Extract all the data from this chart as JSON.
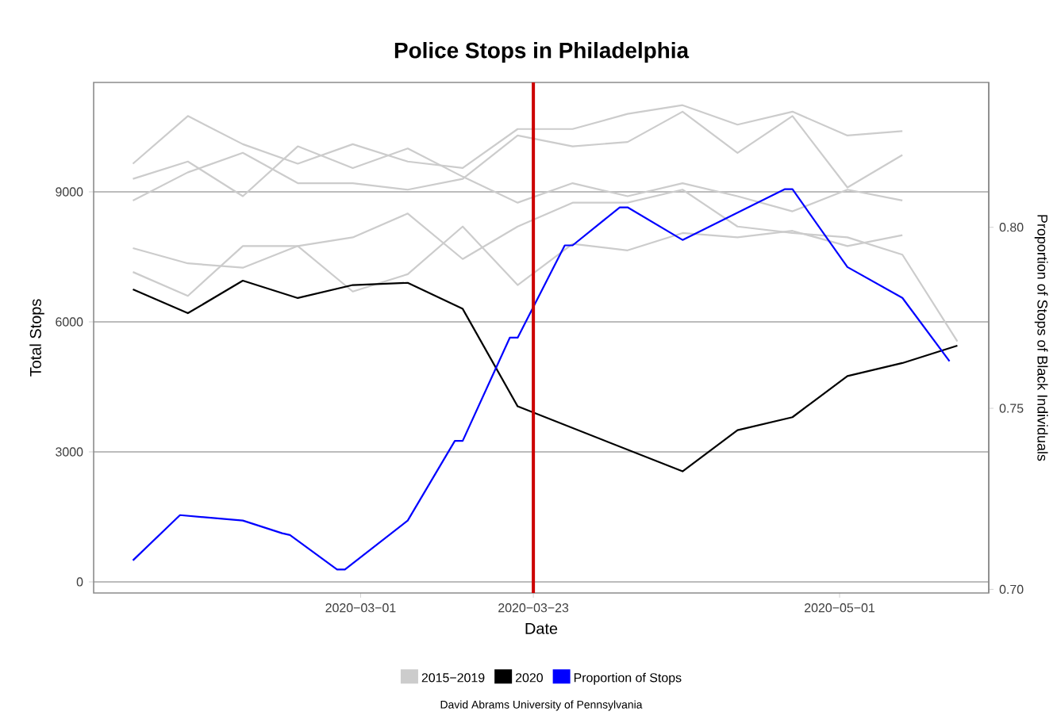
{
  "chart_data": {
    "type": "line",
    "title": "Police Stops in Philadelphia",
    "xlabel": "Date",
    "ylabel": "Total Stops",
    "y2label": "Proportion of Stops of Black Individuals",
    "xlim": [
      "2020-01-27",
      "2020-05-20"
    ],
    "xticks": [
      {
        "value": "2020-03-01",
        "label": "2020−03−01"
      },
      {
        "value": "2020-03-23",
        "label": "2020−03−23"
      },
      {
        "value": "2020-05-01",
        "label": "2020−05−01"
      }
    ],
    "ylim": [
      -256,
      11525
    ],
    "yticks": [
      0,
      3000,
      6000,
      9000
    ],
    "y2lim": [
      0.699,
      0.84
    ],
    "y2ticks": [
      {
        "value": 0.7,
        "label": "0.70"
      },
      {
        "value": 0.75,
        "label": "0.75"
      },
      {
        "value": 0.8,
        "label": "0.80"
      }
    ],
    "grid": "y",
    "legend": "bottom",
    "ref_lines": [
      {
        "axis": "x",
        "value": "2020-03-23",
        "color": "#cc0000"
      }
    ],
    "annotations": [
      "David Abrams University of Pennsylvania"
    ],
    "series": [
      {
        "name": "2015−2019",
        "color": "#cccccc",
        "x": [
          "2020-02-01",
          "2020-02-08",
          "2020-02-15",
          "2020-02-22",
          "2020-02-29",
          "2020-03-07",
          "2020-03-14",
          "2020-03-21",
          "2020-03-28",
          "2020-04-04",
          "2020-04-11",
          "2020-04-18",
          "2020-04-25",
          "2020-05-02",
          "2020-05-09"
        ],
        "values": [
          9650,
          10750,
          10100,
          9650,
          10100,
          9700,
          9550,
          10450,
          10450,
          10800,
          11000,
          10550,
          10850,
          10300,
          10400
        ]
      },
      {
        "color": "#cccccc",
        "x": [
          "2020-02-01",
          "2020-02-08",
          "2020-02-15",
          "2020-02-22",
          "2020-02-29",
          "2020-03-07",
          "2020-03-14",
          "2020-03-21",
          "2020-03-28",
          "2020-04-04",
          "2020-04-11",
          "2020-04-18",
          "2020-04-25",
          "2020-05-02",
          "2020-05-09"
        ],
        "values": [
          9300,
          9700,
          8900,
          10050,
          9550,
          10000,
          9350,
          8750,
          9200,
          8900,
          9200,
          8900,
          8550,
          9050,
          8800
        ]
      },
      {
        "color": "#cccccc",
        "x": [
          "2020-02-01",
          "2020-02-08",
          "2020-02-15",
          "2020-02-22",
          "2020-02-29",
          "2020-03-07",
          "2020-03-14",
          "2020-03-21",
          "2020-03-28",
          "2020-04-04",
          "2020-04-11",
          "2020-04-18",
          "2020-04-25",
          "2020-05-02",
          "2020-05-09"
        ],
        "values": [
          8800,
          9450,
          9900,
          9200,
          9200,
          9050,
          9300,
          10300,
          10050,
          10150,
          10850,
          9900,
          10750,
          9100,
          9850
        ]
      },
      {
        "color": "#cccccc",
        "x": [
          "2020-02-01",
          "2020-02-08",
          "2020-02-15",
          "2020-02-22",
          "2020-02-29",
          "2020-03-07",
          "2020-03-14",
          "2020-03-21",
          "2020-03-28",
          "2020-04-04",
          "2020-04-11",
          "2020-04-18",
          "2020-04-25",
          "2020-05-02",
          "2020-05-09",
          "2020-05-16"
        ],
        "values": [
          7700,
          7350,
          7250,
          7750,
          7950,
          8500,
          7450,
          8200,
          8750,
          8750,
          9050,
          8200,
          8050,
          7950,
          7550,
          5550
        ]
      },
      {
        "color": "#cccccc",
        "x": [
          "2020-02-01",
          "2020-02-08",
          "2020-02-15",
          "2020-02-22",
          "2020-02-29",
          "2020-03-07",
          "2020-03-14",
          "2020-03-21",
          "2020-03-28",
          "2020-04-04",
          "2020-04-11",
          "2020-04-18",
          "2020-04-25",
          "2020-05-02",
          "2020-05-09"
        ],
        "values": [
          7150,
          6600,
          7750,
          7750,
          6700,
          7100,
          8200,
          6850,
          7800,
          7650,
          8050,
          7950,
          8100,
          7750,
          8000
        ]
      },
      {
        "name": "2020",
        "color": "#000000",
        "x": [
          "2020-02-01",
          "2020-02-08",
          "2020-02-15",
          "2020-02-22",
          "2020-02-29",
          "2020-03-07",
          "2020-03-14",
          "2020-03-21",
          "2020-04-11",
          "2020-04-18",
          "2020-04-25",
          "2020-05-02",
          "2020-05-09",
          "2020-05-16"
        ],
        "values": [
          6750,
          6200,
          6950,
          6550,
          6850,
          6900,
          6300,
          4050,
          2550,
          3500,
          3800,
          4750,
          5050,
          5450
        ]
      },
      {
        "name": "Proportion of Stops",
        "color": "#0000ff",
        "axis": "y2",
        "x": [
          "2020-02-01",
          "2020-02-07",
          "2020-02-15",
          "2020-02-20",
          "2020-02-21",
          "2020-02-27",
          "2020-02-28",
          "2020-03-07",
          "2020-03-13",
          "2020-03-14",
          "2020-03-20",
          "2020-03-21",
          "2020-03-27",
          "2020-03-28",
          "2020-04-03",
          "2020-04-04",
          "2020-04-11",
          "2020-04-24",
          "2020-04-25",
          "2020-05-02",
          "2020-05-09",
          "2020-05-15"
        ],
        "values": [
          0.708,
          0.7205,
          0.719,
          0.7155,
          0.715,
          0.7055,
          0.7055,
          0.719,
          0.741,
          0.741,
          0.7695,
          0.7695,
          0.795,
          0.795,
          0.8055,
          0.8055,
          0.7965,
          0.8105,
          0.8105,
          0.789,
          0.7805,
          0.763
        ]
      }
    ]
  }
}
